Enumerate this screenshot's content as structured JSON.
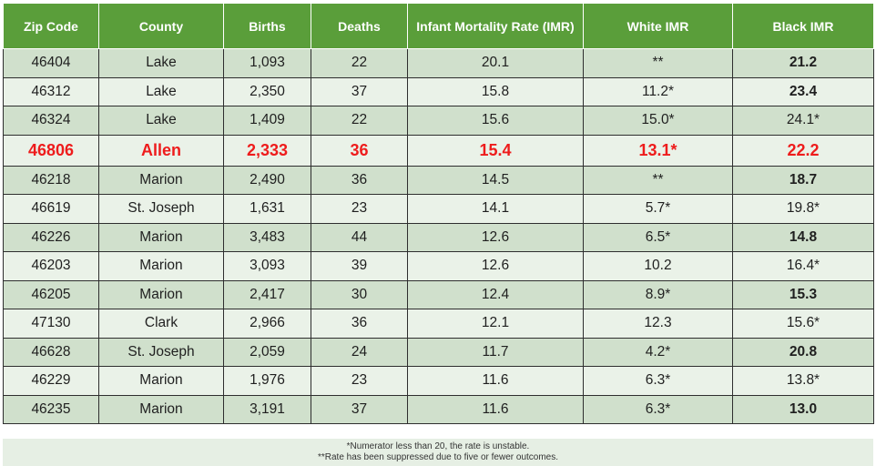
{
  "table": {
    "headers": [
      "Zip Code",
      "County",
      "Births",
      "Deaths",
      "Infant Mortality Rate (IMR)",
      "White IMR",
      "Black IMR"
    ],
    "rows": [
      {
        "zip": "46404",
        "county": "Lake",
        "births": "1,093",
        "deaths": "22",
        "imr": "20.1",
        "white_imr": "**",
        "black_imr": "21.2",
        "black_bold": true,
        "highlight": false
      },
      {
        "zip": "46312",
        "county": "Lake",
        "births": "2,350",
        "deaths": "37",
        "imr": "15.8",
        "white_imr": "11.2*",
        "black_imr": "23.4",
        "black_bold": true,
        "highlight": false
      },
      {
        "zip": "46324",
        "county": "Lake",
        "births": "1,409",
        "deaths": "22",
        "imr": "15.6",
        "white_imr": "15.0*",
        "black_imr": "24.1*",
        "black_bold": false,
        "highlight": false
      },
      {
        "zip": "46806",
        "county": "Allen",
        "births": "2,333",
        "deaths": "36",
        "imr": "15.4",
        "white_imr": "13.1*",
        "black_imr": "22.2",
        "black_bold": true,
        "highlight": true
      },
      {
        "zip": "46218",
        "county": "Marion",
        "births": "2,490",
        "deaths": "36",
        "imr": "14.5",
        "white_imr": "**",
        "black_imr": "18.7",
        "black_bold": true,
        "highlight": false
      },
      {
        "zip": "46619",
        "county": "St. Joseph",
        "births": "1,631",
        "deaths": "23",
        "imr": "14.1",
        "white_imr": "5.7*",
        "black_imr": "19.8*",
        "black_bold": false,
        "highlight": false
      },
      {
        "zip": "46226",
        "county": "Marion",
        "births": "3,483",
        "deaths": "44",
        "imr": "12.6",
        "white_imr": "6.5*",
        "black_imr": "14.8",
        "black_bold": true,
        "highlight": false
      },
      {
        "zip": "46203",
        "county": "Marion",
        "births": "3,093",
        "deaths": "39",
        "imr": "12.6",
        "white_imr": "10.2",
        "black_imr": "16.4*",
        "black_bold": false,
        "highlight": false
      },
      {
        "zip": "46205",
        "county": "Marion",
        "births": "2,417",
        "deaths": "30",
        "imr": "12.4",
        "white_imr": "8.9*",
        "black_imr": "15.3",
        "black_bold": true,
        "highlight": false
      },
      {
        "zip": "47130",
        "county": "Clark",
        "births": "2,966",
        "deaths": "36",
        "imr": "12.1",
        "white_imr": "12.3",
        "black_imr": "15.6*",
        "black_bold": false,
        "highlight": false
      },
      {
        "zip": "46628",
        "county": "St. Joseph",
        "births": "2,059",
        "deaths": "24",
        "imr": "11.7",
        "white_imr": "4.2*",
        "black_imr": "20.8",
        "black_bold": true,
        "highlight": false
      },
      {
        "zip": "46229",
        "county": "Marion",
        "births": "1,976",
        "deaths": "23",
        "imr": "11.6",
        "white_imr": "6.3*",
        "black_imr": "13.8*",
        "black_bold": false,
        "highlight": false
      },
      {
        "zip": "46235",
        "county": "Marion",
        "births": "3,191",
        "deaths": "37",
        "imr": "11.6",
        "white_imr": "6.3*",
        "black_imr": "13.0",
        "black_bold": true,
        "highlight": false
      }
    ]
  },
  "footnotes": [
    "*Numerator less than 20, the rate is unstable.",
    "**Rate has been suppressed due to five or fewer outcomes."
  ],
  "colors": {
    "header_bg": "#5a9e3a",
    "row_odd": "#d0e0cc",
    "row_even": "#eaf2e8",
    "highlight_text": "#ee1c1c"
  }
}
